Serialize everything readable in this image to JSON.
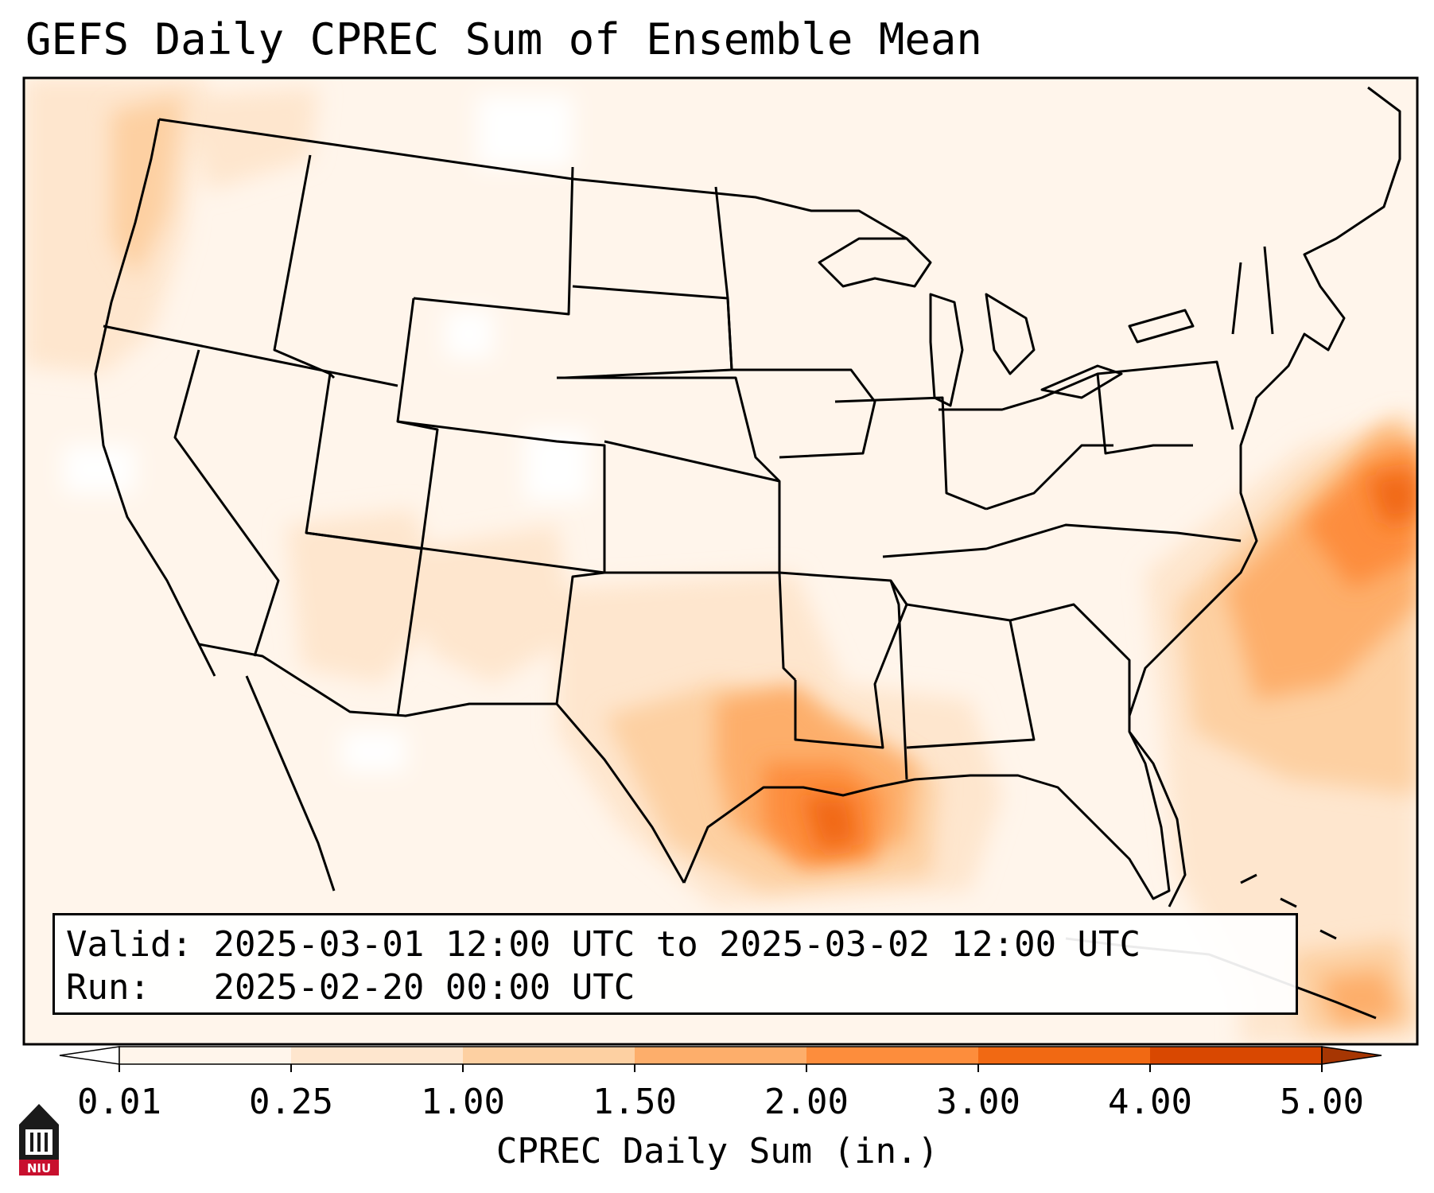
{
  "title": "GEFS Daily CPREC Sum of Ensemble Mean",
  "info": {
    "valid_label": "Valid:",
    "valid_value": "2025-03-01 12:00 UTC to 2025-03-02 12:00 UTC",
    "run_label": "Run:",
    "run_value": "2025-02-20 00:00 UTC"
  },
  "colorbar": {
    "label": "CPREC Daily Sum (in.)",
    "ticks": [
      "0.01",
      "0.25",
      "1.00",
      "1.50",
      "2.00",
      "3.00",
      "4.00",
      "5.00"
    ],
    "colors": [
      "#fff5eb",
      "#fee6ce",
      "#fdd0a2",
      "#fdae6b",
      "#fd8d3c",
      "#f16913",
      "#d94801",
      "#a63603"
    ],
    "under_color": "#ffffff",
    "over_color": "#a63603"
  },
  "logo": {
    "text": "NIU",
    "color": "#c8102e"
  },
  "precip_regions": [
    {
      "name": "pacific-northwest-coast",
      "level": "0.25-1.00"
    },
    {
      "name": "gulf-coast-texas-louisiana",
      "level": "2.00-3.00"
    },
    {
      "name": "east-texas",
      "level": "1.50-2.00"
    },
    {
      "name": "western-atlantic",
      "level": "1.50-3.00"
    },
    {
      "name": "caribbean-bahamas",
      "level": "1.00-2.00"
    }
  ]
}
